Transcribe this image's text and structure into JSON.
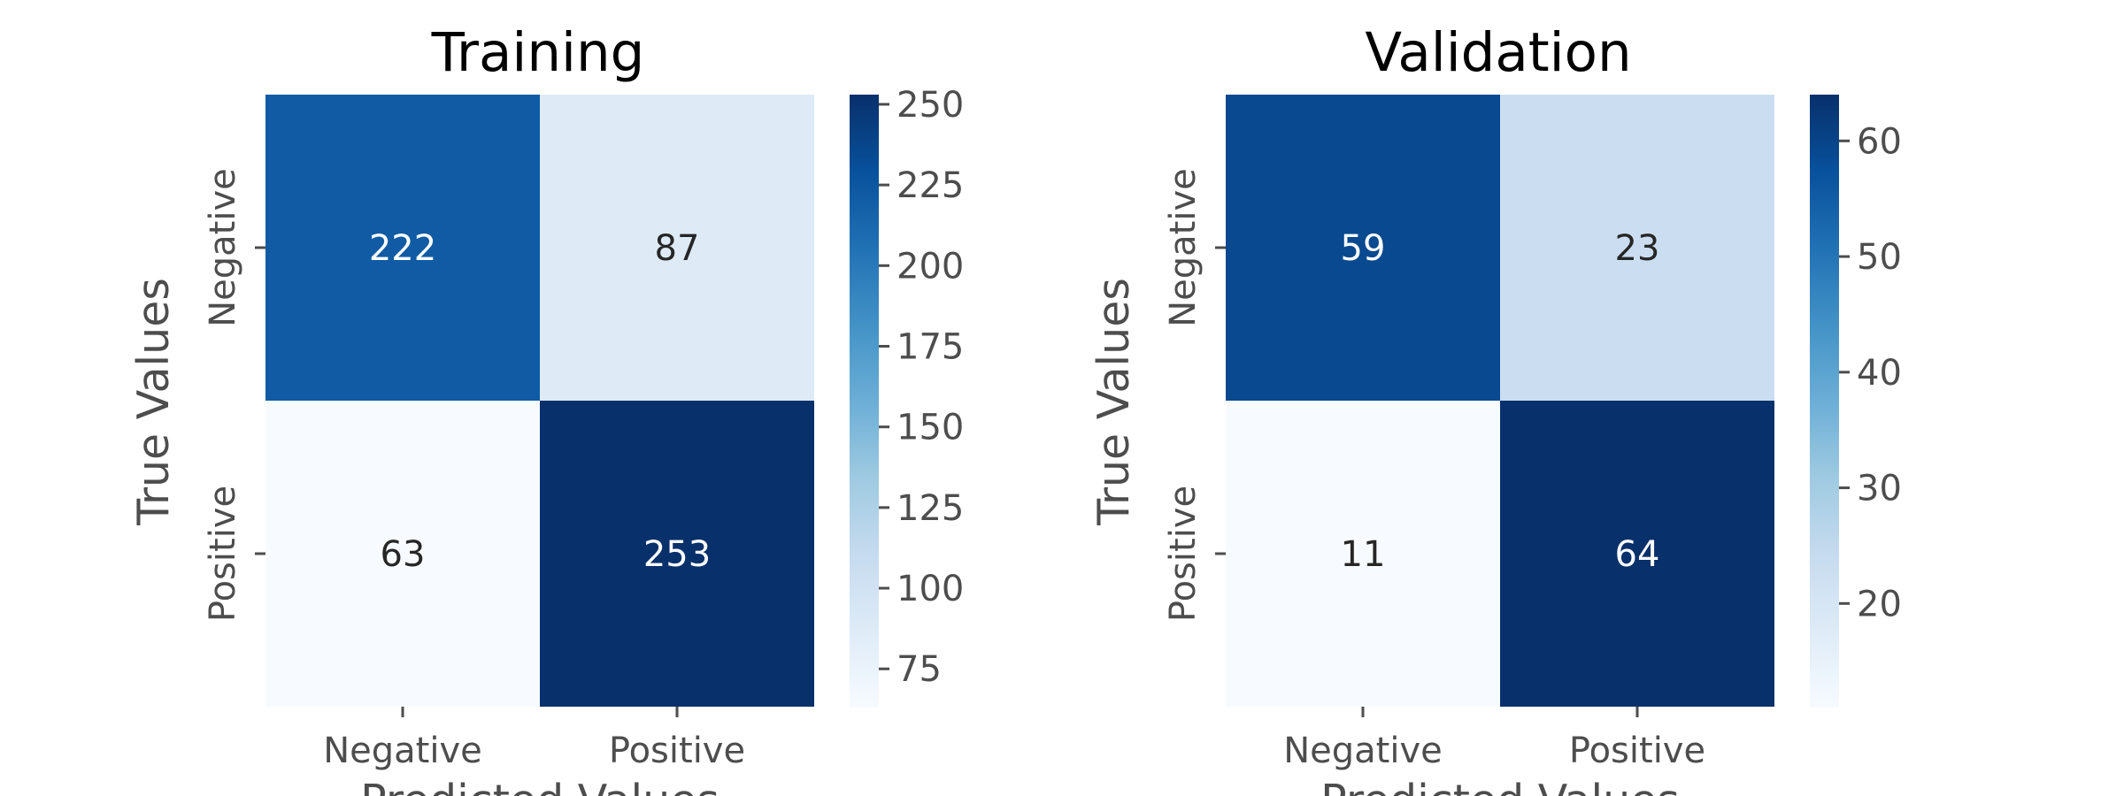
{
  "chart_data": [
    {
      "type": "heatmap",
      "title": "Training",
      "xlabel": "Predicted Values",
      "ylabel": "True Values",
      "x_categories": [
        "Negative",
        "Positive"
      ],
      "y_categories": [
        "Negative",
        "Positive"
      ],
      "values": [
        [
          222,
          87
        ],
        [
          63,
          253
        ]
      ],
      "colormap": "Blues",
      "colorbar": {
        "min": 63,
        "max": 253,
        "ticks": [
          75,
          100,
          125,
          150,
          175,
          200,
          225,
          250
        ]
      }
    },
    {
      "type": "heatmap",
      "title": "Validation",
      "xlabel": "Predicted Values",
      "ylabel": "True Values",
      "x_categories": [
        "Negative",
        "Positive"
      ],
      "y_categories": [
        "Negative",
        "Positive"
      ],
      "values": [
        [
          59,
          23
        ],
        [
          11,
          64
        ]
      ],
      "colormap": "Blues",
      "colorbar": {
        "min": 11,
        "max": 64,
        "ticks": [
          20,
          30,
          40,
          50,
          60
        ]
      }
    }
  ]
}
